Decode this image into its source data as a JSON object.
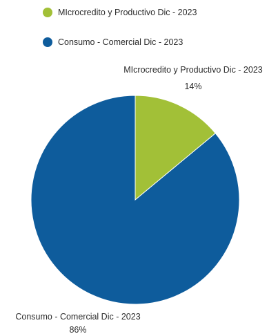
{
  "chart_data": {
    "type": "pie",
    "title": "",
    "legend_placement": "top-left",
    "slices": [
      {
        "label": "MIcrocredito y Productivo Dic - 2023",
        "value": 14,
        "value_label": "14%",
        "color": "#a2c037"
      },
      {
        "label": "Consumo - Comercial Dic - 2023",
        "value": 86,
        "value_label": "86%",
        "color": "#0e5c9c"
      }
    ]
  }
}
